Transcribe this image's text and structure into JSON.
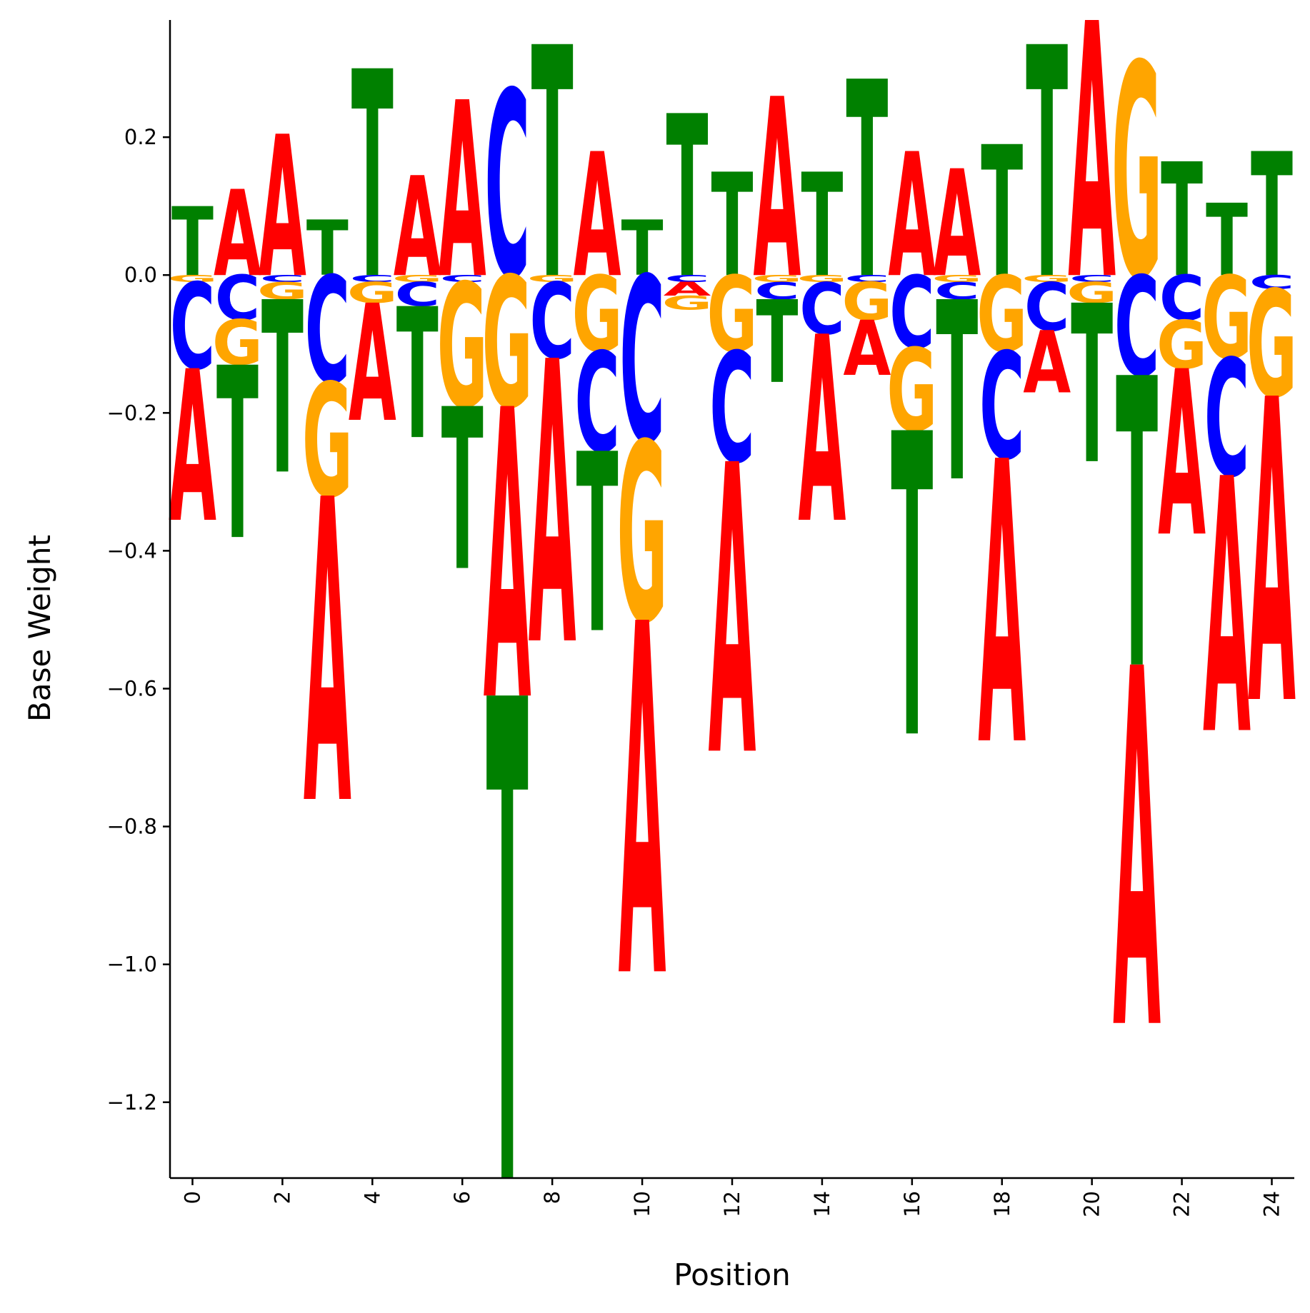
{
  "chart_data": {
    "type": "sequence-logo",
    "xlabel": "Position",
    "ylabel": "Base Weight",
    "xlim": [
      -0.5,
      24.5
    ],
    "ylim": [
      -1.31,
      0.37
    ],
    "xticks": [
      "0",
      "2",
      "4",
      "6",
      "8",
      "10",
      "12",
      "14",
      "16",
      "18",
      "20",
      "22",
      "24"
    ],
    "yticks": [
      "0.2",
      "0.0",
      "−0.2",
      "−0.4",
      "−0.6",
      "−0.8",
      "−1.0",
      "−1.2"
    ],
    "ytick_values": [
      0.2,
      0.0,
      -0.2,
      -0.4,
      -0.6,
      -0.8,
      -1.0,
      -1.2
    ],
    "colors": {
      "A": "#ff0000",
      "C": "#0000ff",
      "G": "#ffa500",
      "T": "#008000"
    },
    "positions": [
      {
        "pos": 0,
        "A": -0.22,
        "C": -0.125,
        "G": -0.01,
        "T": 0.1
      },
      {
        "pos": 1,
        "A": 0.125,
        "C": -0.065,
        "G": -0.065,
        "T": -0.25
      },
      {
        "pos": 2,
        "A": 0.205,
        "C": -0.01,
        "G": -0.025,
        "T": -0.25
      },
      {
        "pos": 3,
        "A": -0.44,
        "C": -0.155,
        "G": -0.165,
        "T": 0.08
      },
      {
        "pos": 4,
        "A": -0.17,
        "C": -0.01,
        "G": -0.03,
        "T": 0.3
      },
      {
        "pos": 5,
        "A": 0.145,
        "C": -0.035,
        "G": -0.01,
        "T": -0.19
      },
      {
        "pos": 6,
        "A": 0.255,
        "C": -0.01,
        "G": -0.18,
        "T": -0.235
      },
      {
        "pos": 7,
        "A": -0.42,
        "C": 0.27,
        "G": -0.19,
        "T": -0.7
      },
      {
        "pos": 8,
        "A": -0.41,
        "C": -0.11,
        "G": -0.01,
        "T": 0.335
      },
      {
        "pos": 9,
        "A": 0.18,
        "C": -0.145,
        "G": -0.11,
        "T": -0.26
      },
      {
        "pos": 10,
        "A": -0.51,
        "C": -0.24,
        "G": -0.26,
        "T": 0.08
      },
      {
        "pos": 11,
        "A": -0.02,
        "C": -0.01,
        "G": -0.02,
        "T": 0.235
      },
      {
        "pos": 12,
        "A": -0.42,
        "C": -0.16,
        "G": -0.11,
        "T": 0.15
      },
      {
        "pos": 13,
        "A": 0.26,
        "C": -0.025,
        "G": -0.01,
        "T": -0.12
      },
      {
        "pos": 14,
        "A": -0.27,
        "C": -0.075,
        "G": -0.01,
        "T": 0.15
      },
      {
        "pos": 15,
        "A": -0.08,
        "C": -0.01,
        "G": -0.055,
        "T": 0.285
      },
      {
        "pos": 16,
        "A": 0.18,
        "C": -0.105,
        "G": -0.12,
        "T": -0.44
      },
      {
        "pos": 17,
        "A": 0.155,
        "C": -0.025,
        "G": -0.01,
        "T": -0.26
      },
      {
        "pos": 18,
        "A": -0.41,
        "C": -0.155,
        "G": -0.11,
        "T": 0.19
      },
      {
        "pos": 19,
        "A": -0.09,
        "C": -0.07,
        "G": -0.01,
        "T": 0.335
      },
      {
        "pos": 20,
        "A": 0.37,
        "C": -0.01,
        "G": -0.03,
        "T": -0.23
      },
      {
        "pos": 21,
        "A": -0.52,
        "C": -0.145,
        "G": 0.31,
        "T": -0.42
      },
      {
        "pos": 22,
        "A": -0.24,
        "C": -0.065,
        "G": -0.07,
        "T": 0.165
      },
      {
        "pos": 23,
        "A": -0.37,
        "C": -0.17,
        "G": -0.12,
        "T": 0.105
      },
      {
        "pos": 24,
        "A": -0.44,
        "C": -0.02,
        "G": -0.155,
        "T": 0.18
      }
    ]
  }
}
